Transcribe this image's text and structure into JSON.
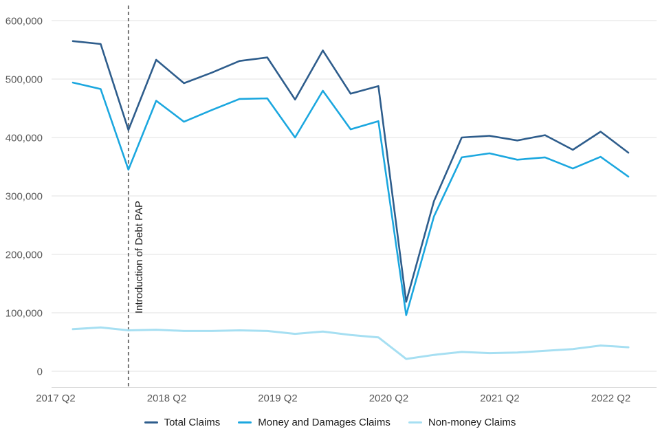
{
  "chart_data": {
    "type": "line",
    "x": [
      "2017 Q2",
      "2017 Q3",
      "2017 Q4",
      "2018 Q1",
      "2018 Q2",
      "2018 Q3",
      "2018 Q4",
      "2019 Q1",
      "2019 Q2",
      "2019 Q3",
      "2019 Q4",
      "2020 Q1",
      "2020 Q2",
      "2020 Q3",
      "2020 Q4",
      "2021 Q1",
      "2021 Q2",
      "2021 Q3",
      "2021 Q4",
      "2022 Q1",
      "2022 Q2"
    ],
    "x_tick_labels": [
      "2017 Q2",
      "2018 Q2",
      "2019 Q2",
      "2020 Q2",
      "2021 Q2",
      "2022 Q2"
    ],
    "y_ticks": [
      0,
      100000,
      200000,
      300000,
      400000,
      500000,
      600000
    ],
    "ylim": [
      0,
      620000
    ],
    "grid": "horizontal",
    "legend_position": "bottom",
    "series": [
      {
        "name": "Total Claims",
        "color": "#2e5d8c",
        "values": [
          565000,
          560000,
          413000,
          533000,
          493000,
          511000,
          531000,
          537000,
          465000,
          549000,
          475000,
          488000,
          119000,
          291000,
          400000,
          403000,
          395000,
          404000,
          379000,
          410000,
          374000
        ]
      },
      {
        "name": "Money and Damages Claims",
        "color": "#1ba7df",
        "values": [
          494000,
          483000,
          345000,
          463000,
          427000,
          447000,
          466000,
          467000,
          400000,
          480000,
          414000,
          428000,
          96000,
          265000,
          366000,
          373000,
          362000,
          366000,
          347000,
          367000,
          333000
        ]
      },
      {
        "name": "Non-money Claims",
        "color": "#a6dff2",
        "values": [
          72000,
          75000,
          70000,
          71000,
          69000,
          69000,
          70000,
          69000,
          64000,
          68000,
          62000,
          58000,
          21000,
          28000,
          33000,
          31000,
          32000,
          35000,
          38000,
          44000,
          41000
        ]
      }
    ],
    "annotation": {
      "label": "Introduction of Debt PAP",
      "x": "2017 Q4"
    }
  }
}
